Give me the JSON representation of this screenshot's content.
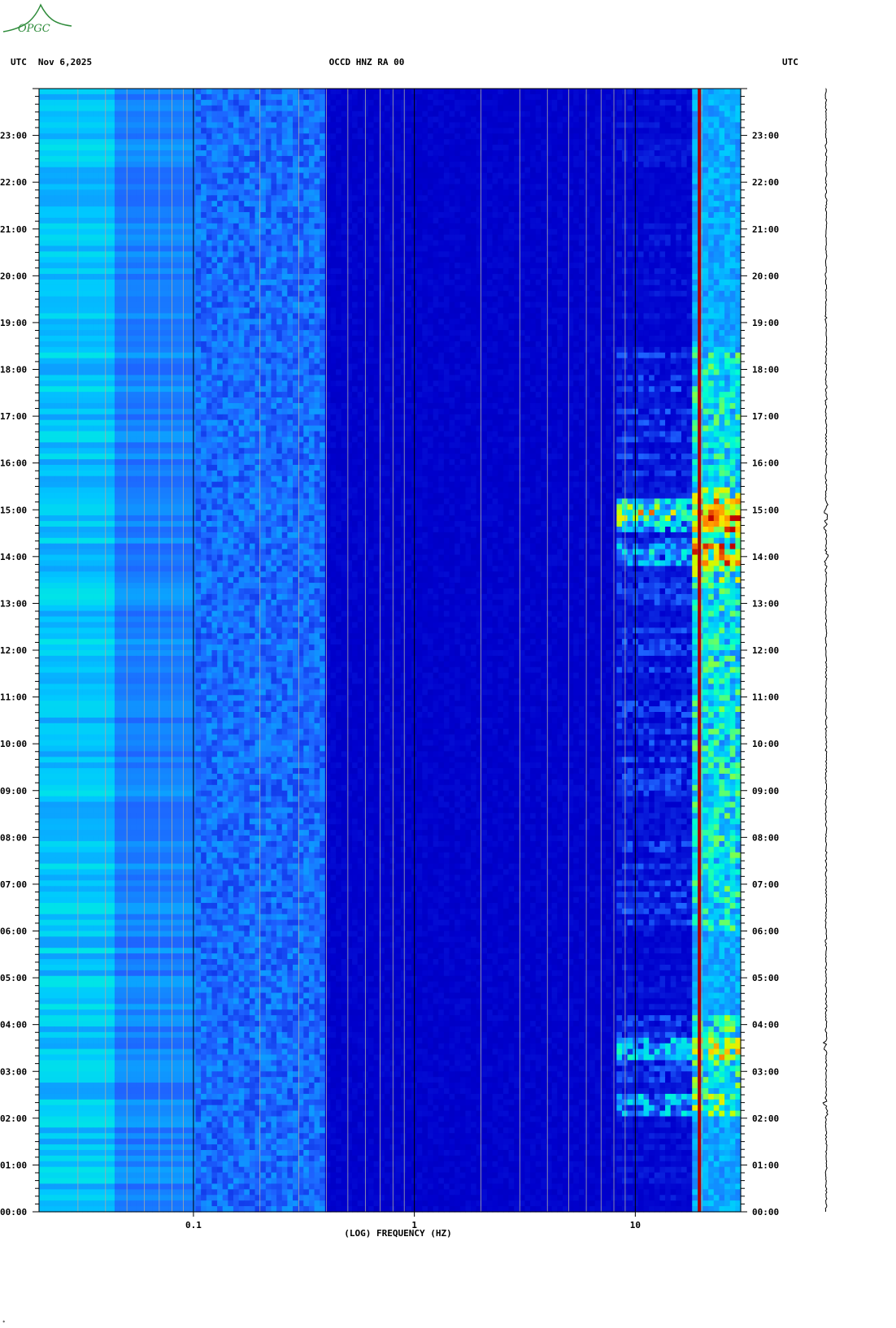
{
  "header": {
    "left_tz": "UTC",
    "date": "Nov 6,2025",
    "station": "OCCD HNZ RA 00",
    "right_tz": "UTC"
  },
  "logo": {
    "text": "OPGC",
    "color": "#2e8b3a"
  },
  "chart_data": {
    "type": "heatmap",
    "title": "OCCD HNZ RA 00",
    "xlabel": "(LOG) FREQUENCY (HZ)",
    "x_scale": "log",
    "xlim": [
      0.02,
      30
    ],
    "x_ticks": [
      {
        "value": 0.1,
        "label": "0.1"
      },
      {
        "value": 1,
        "label": "1"
      },
      {
        "value": 10,
        "label": "10"
      }
    ],
    "ylabel": "",
    "ylim_hours": [
      0,
      24
    ],
    "y_ticks": [
      "00:00",
      "01:00",
      "02:00",
      "03:00",
      "04:00",
      "05:00",
      "06:00",
      "07:00",
      "08:00",
      "09:00",
      "10:00",
      "11:00",
      "12:00",
      "13:00",
      "14:00",
      "15:00",
      "16:00",
      "17:00",
      "18:00",
      "19:00",
      "20:00",
      "21:00",
      "22:00",
      "23:00"
    ],
    "grid": true,
    "colormap": [
      "#00008b",
      "#0000cd",
      "#1e64ff",
      "#00c8ff",
      "#00ffd0",
      "#c8ff00",
      "#ffe000",
      "#ff7f00",
      "#c00000"
    ],
    "persistent_line_hz": 19.5,
    "strong_events_utc": [
      "02:15",
      "03:30",
      "14:00",
      "14:45",
      "15:00"
    ]
  },
  "trace": {
    "label": "seismogram trace",
    "color": "#000000"
  }
}
